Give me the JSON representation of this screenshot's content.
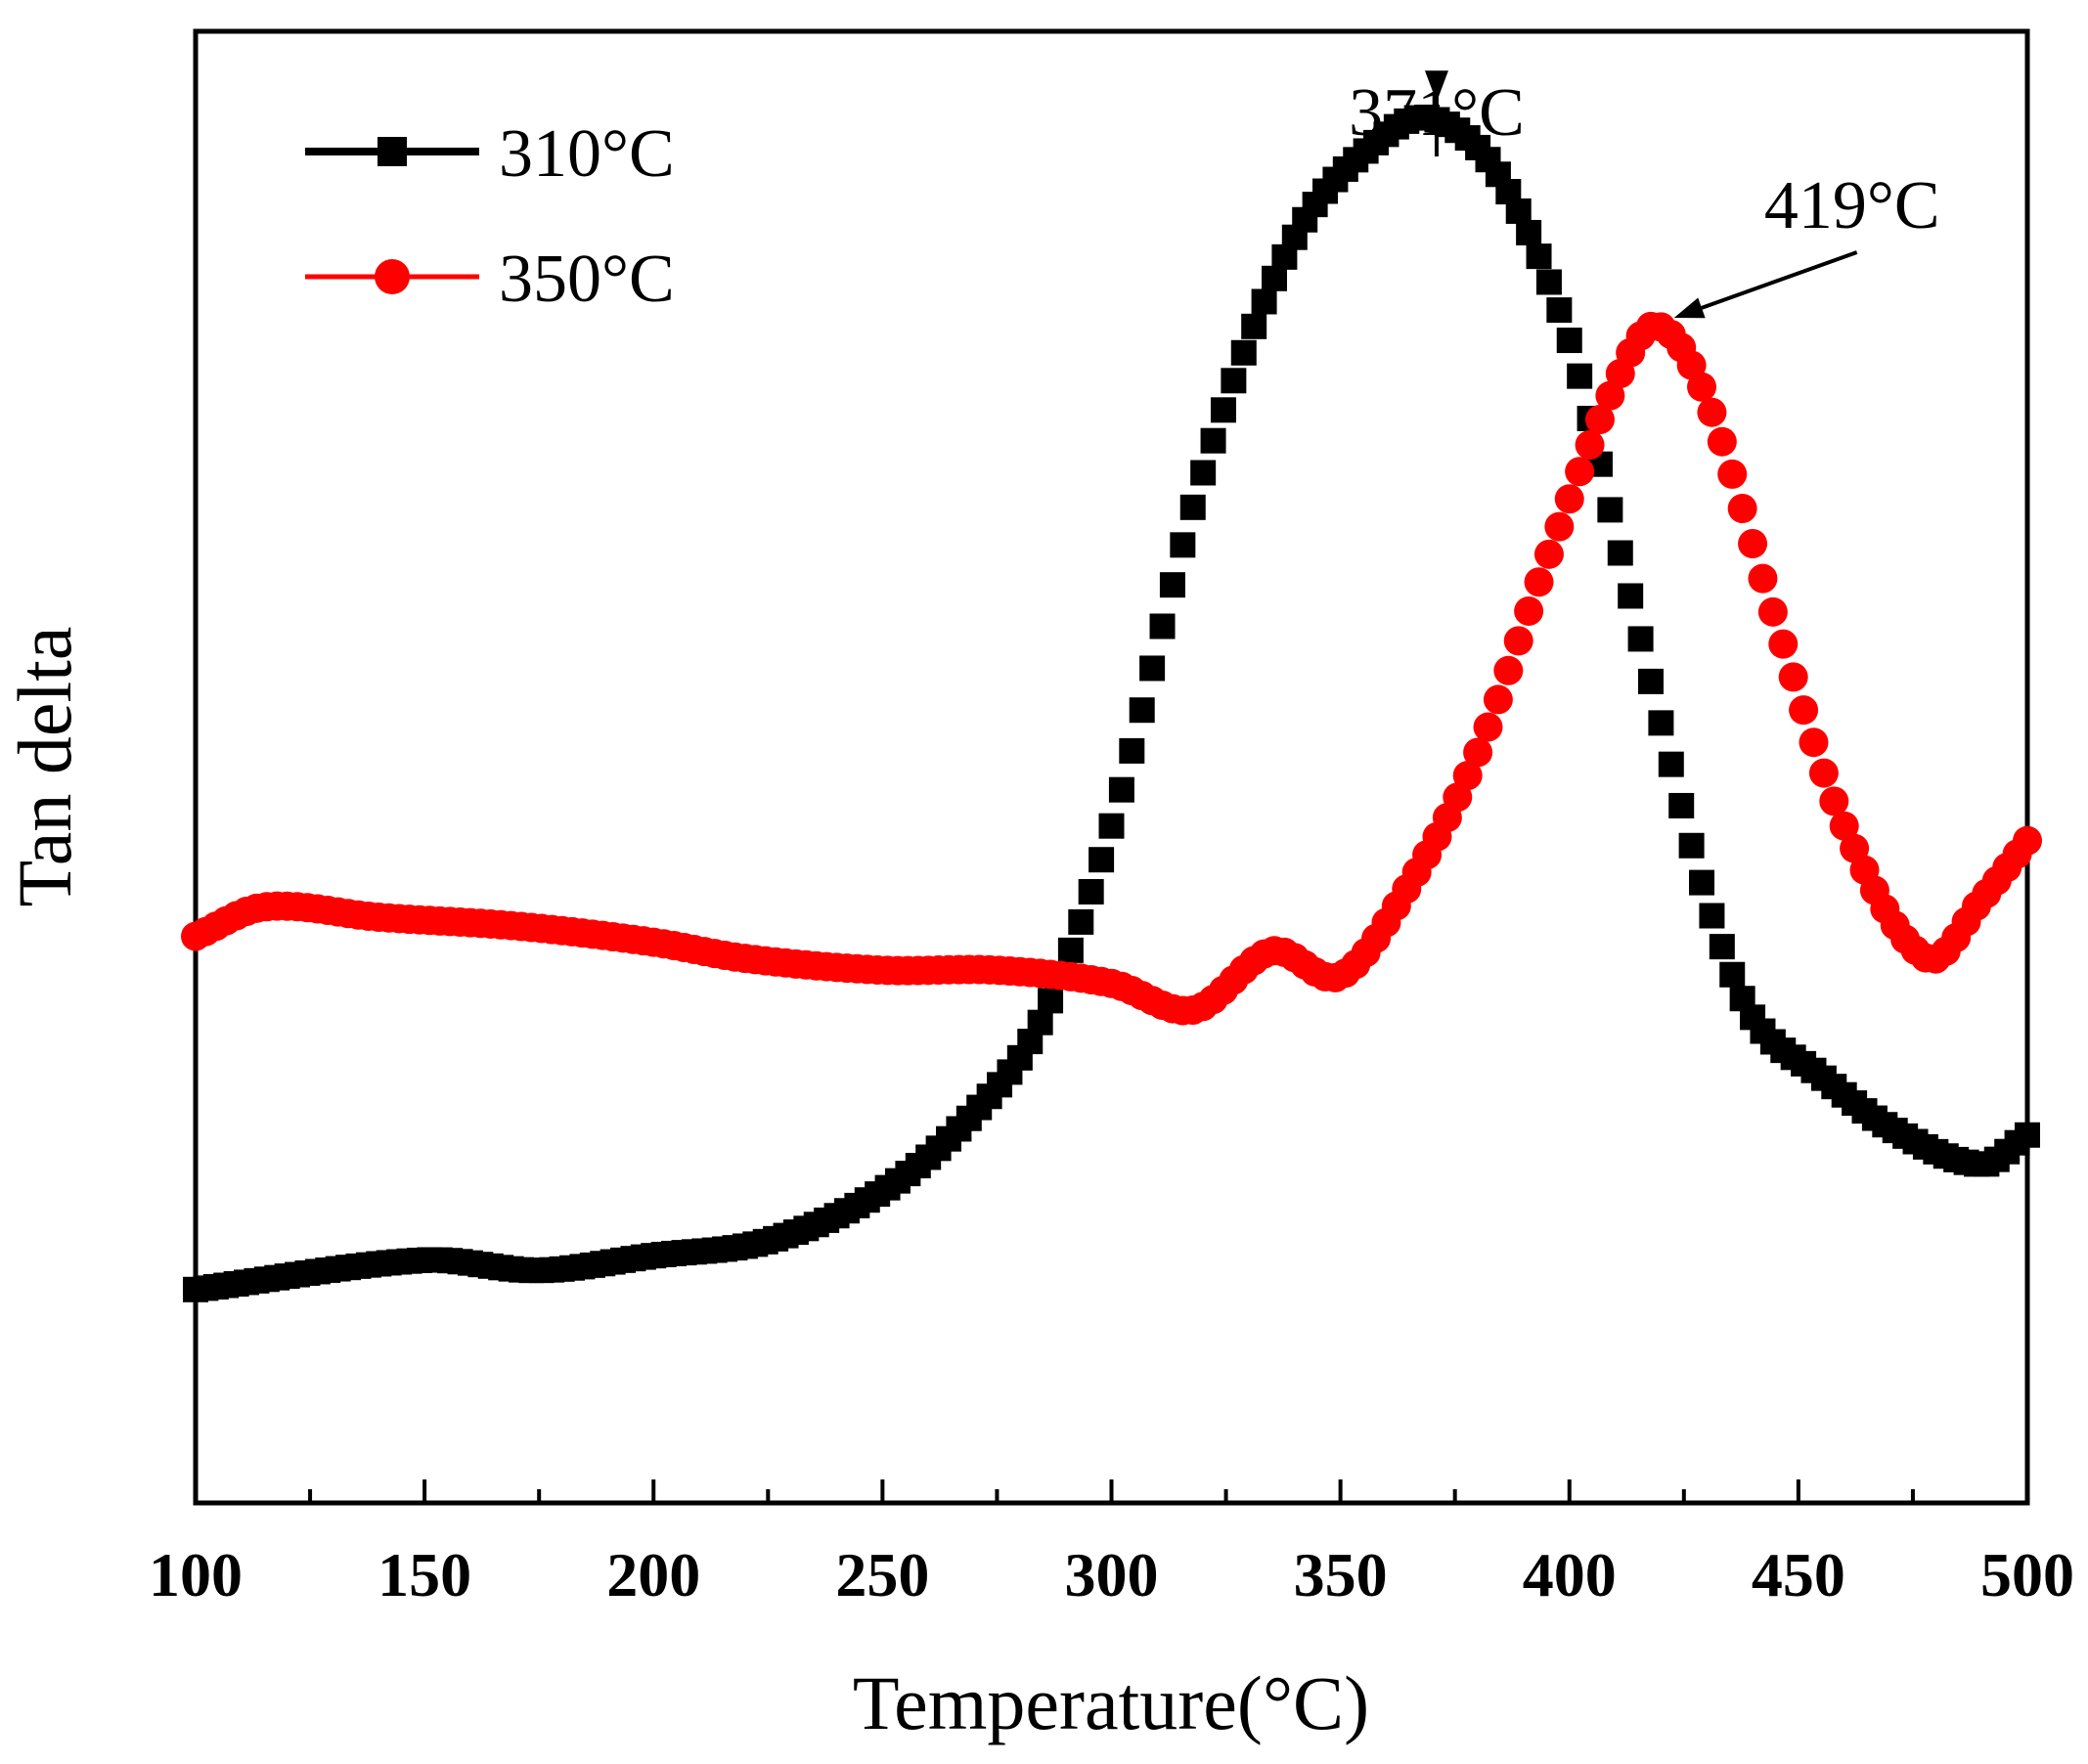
{
  "chart_data": {
    "type": "scatter",
    "title": "",
    "xlabel": "Temperature(°C)",
    "ylabel": "Tan delta",
    "xlim": [
      100,
      500
    ],
    "ylim": [
      0,
      1
    ],
    "xticks": [
      100,
      150,
      200,
      250,
      300,
      350,
      400,
      450,
      500
    ],
    "xtick_labels": [
      "100",
      "150",
      "200",
      "250",
      "300",
      "350",
      "400",
      "450",
      "500"
    ],
    "yticks_shown": false,
    "grid": false,
    "legend_position": "top-left",
    "series": [
      {
        "name": "310°C",
        "color": "#000000",
        "marker": "square",
        "x": [
          100,
          150,
          175,
          200,
          225,
          250,
          270,
          285,
          300,
          320,
          340,
          360,
          371,
          385,
          400,
          410,
          420,
          430,
          440,
          455,
          470,
          490,
          500
        ],
        "y": [
          0.145,
          0.165,
          0.158,
          0.168,
          0.178,
          0.212,
          0.265,
          0.33,
          0.46,
          0.7,
          0.86,
          0.93,
          0.94,
          0.9,
          0.79,
          0.66,
          0.53,
          0.41,
          0.33,
          0.29,
          0.255,
          0.23,
          0.25
        ]
      },
      {
        "name": "350°C",
        "color": "#ff0000",
        "marker": "circle",
        "x": [
          100,
          115,
          140,
          170,
          200,
          220,
          250,
          275,
          300,
          318,
          335,
          350,
          365,
          380,
          395,
          410,
          419,
          430,
          445,
          460,
          478,
          490,
          500
        ],
        "y": [
          0.385,
          0.405,
          0.398,
          0.392,
          0.381,
          0.37,
          0.362,
          0.362,
          0.353,
          0.335,
          0.375,
          0.358,
          0.42,
          0.51,
          0.64,
          0.76,
          0.8,
          0.75,
          0.6,
          0.46,
          0.37,
          0.41,
          0.45
        ]
      }
    ],
    "annotations": [
      {
        "text": "371°C",
        "x": 371,
        "y": 0.94
      },
      {
        "text": "419°C",
        "x": 419,
        "y": 0.8
      }
    ]
  }
}
